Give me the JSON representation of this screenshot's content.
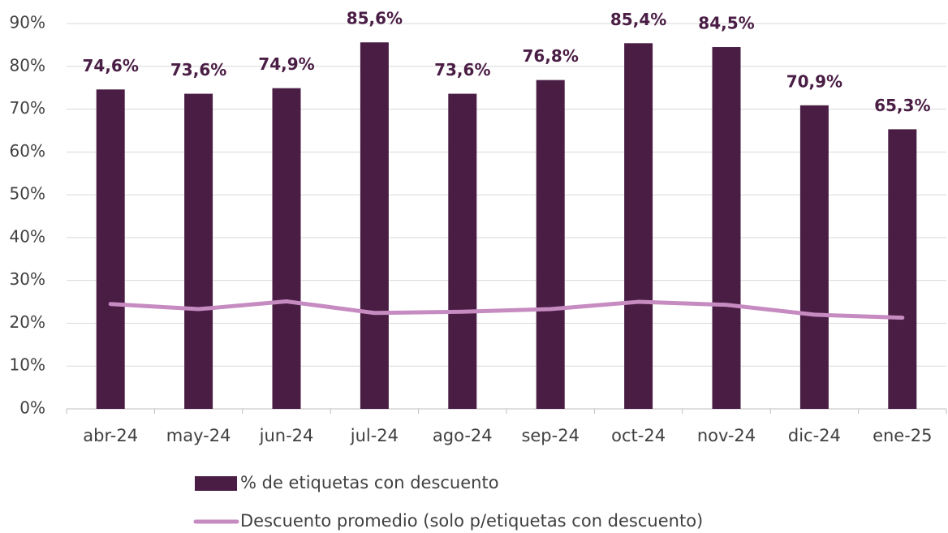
{
  "chart_data": {
    "type": "bar",
    "categories": [
      "abr-24",
      "may-24",
      "jun-24",
      "jul-24",
      "ago-24",
      "sep-24",
      "oct-24",
      "nov-24",
      "dic-24",
      "ene-25"
    ],
    "series": [
      {
        "name": "% de etiquetas con descuento",
        "type": "bar",
        "color": "#4a1d45",
        "values": [
          74.6,
          73.6,
          74.9,
          85.6,
          73.6,
          76.8,
          85.4,
          84.5,
          70.9,
          65.3
        ],
        "value_labels": [
          "74,6%",
          "73,6%",
          "74,9%",
          "85,6%",
          "73,6%",
          "76,8%",
          "85,4%",
          "84,5%",
          "70,9%",
          "65,3%"
        ]
      },
      {
        "name": "Descuento promedio (solo p/etiquetas con descuento)",
        "type": "line",
        "color": "#c68bc0",
        "values": [
          24.5,
          23.3,
          25.1,
          22.4,
          22.7,
          23.3,
          25.0,
          24.3,
          22.0,
          21.3
        ]
      }
    ],
    "ylim": [
      0,
      90
    ],
    "yticks": [
      {
        "value": 0,
        "label": "0%"
      },
      {
        "value": 10,
        "label": "10%"
      },
      {
        "value": 20,
        "label": "20%"
      },
      {
        "value": 30,
        "label": "30%"
      },
      {
        "value": 40,
        "label": "40%"
      },
      {
        "value": 50,
        "label": "50%"
      },
      {
        "value": 60,
        "label": "60%"
      },
      {
        "value": 70,
        "label": "70%"
      },
      {
        "value": 80,
        "label": "80%"
      },
      {
        "value": 90,
        "label": "90%"
      }
    ],
    "grid": true,
    "legend": "bottom"
  }
}
